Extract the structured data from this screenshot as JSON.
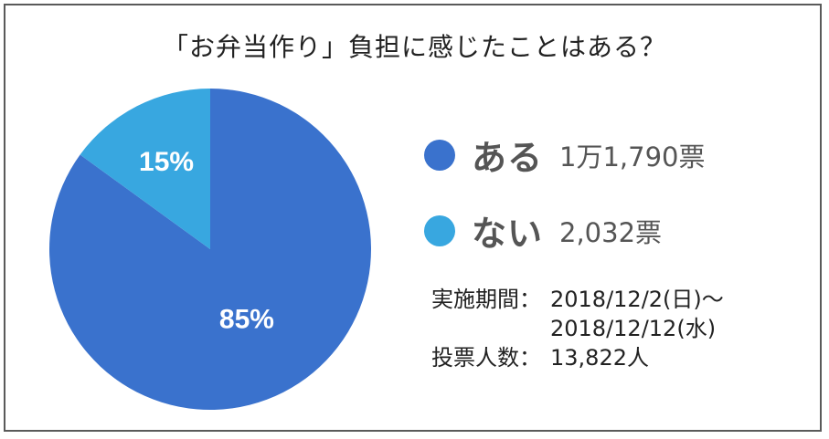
{
  "chart_data": {
    "type": "pie",
    "title": "「お弁当作り」負担に感じたことはある？",
    "slices": [
      {
        "label": "ある",
        "value": 85,
        "value_label": "85%",
        "votes": "1万1,790票",
        "color": "#3a72cd"
      },
      {
        "label": "ない",
        "value": 15,
        "value_label": "15%",
        "votes": "2,032票",
        "color": "#38a7e0"
      }
    ]
  },
  "info": {
    "period_label": "実施期間：",
    "period_start": "2018/12/2(日)～",
    "period_end": "2018/12/12(水)",
    "votes_label": "投票人数：",
    "votes_total": "13,822人"
  }
}
